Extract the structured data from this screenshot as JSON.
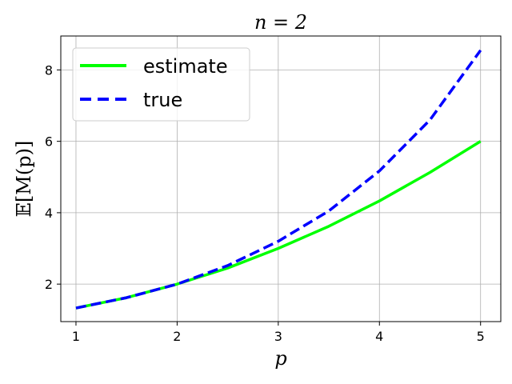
{
  "chart_data": {
    "type": "line",
    "title": "n = 2",
    "xlabel": "p",
    "ylabel": "𝔼[M(p)]",
    "xlim": [
      0.85,
      5.2
    ],
    "ylim": [
      0.95,
      8.95
    ],
    "xticks": [
      1,
      2,
      3,
      4,
      5
    ],
    "yticks": [
      2,
      4,
      6,
      8
    ],
    "grid": true,
    "legend_position": "top-left",
    "series": [
      {
        "name": "estimate",
        "color": "#00ff00",
        "style": "solid",
        "x": [
          1.0,
          1.5,
          2.0,
          2.5,
          3.0,
          3.5,
          4.0,
          4.5,
          5.0
        ],
        "y": [
          1.33,
          1.62,
          2.0,
          2.45,
          3.0,
          3.62,
          4.33,
          5.13,
          6.0
        ]
      },
      {
        "name": "true",
        "color": "#0000ff",
        "style": "dashed",
        "x": [
          1.0,
          1.5,
          2.0,
          2.5,
          3.0,
          3.5,
          4.0,
          4.5,
          5.0
        ],
        "y": [
          1.33,
          1.62,
          2.0,
          2.52,
          3.2,
          4.05,
          5.17,
          6.6,
          8.55
        ]
      }
    ]
  }
}
